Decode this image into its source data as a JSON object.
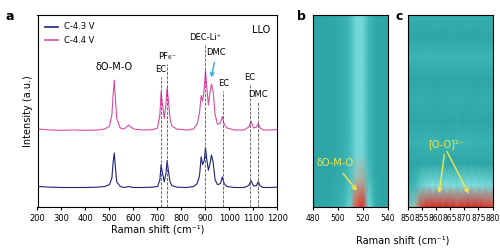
{
  "chart_data": [
    {
      "type": "line",
      "label": "a",
      "note": "LLO",
      "xlabel": "Raman shift (cm⁻¹)",
      "ylabel": "Intensity (a.u.)",
      "x": [
        200,
        250,
        300,
        350,
        400,
        450,
        480,
        500,
        510,
        515,
        520,
        525,
        530,
        545,
        560,
        580,
        600,
        640,
        680,
        700,
        710,
        715,
        720,
        728,
        735,
        740,
        745,
        752,
        760,
        780,
        820,
        850,
        865,
        875,
        882,
        888,
        895,
        900,
        905,
        912,
        918,
        925,
        932,
        940,
        950,
        962,
        970,
        978,
        990,
        1020,
        1060,
        1080,
        1090,
        1100,
        1112,
        1120,
        1128,
        1140,
        1170,
        1200
      ],
      "series": [
        {
          "name": "C-4.3 V",
          "color": "#1f1f7a",
          "values": [
            1.05,
            1.02,
            1.0,
            1.0,
            1.0,
            1.02,
            1.05,
            1.15,
            1.5,
            2.3,
            2.8,
            2.0,
            1.3,
            1.05,
            1.0,
            1.05,
            1.0,
            1.0,
            1.02,
            1.05,
            1.4,
            2.2,
            1.8,
            1.3,
            1.7,
            2.4,
            1.9,
            1.3,
            1.1,
            1.02,
            1.0,
            1.05,
            1.2,
            1.6,
            2.6,
            2.2,
            2.4,
            3.1,
            2.5,
            1.9,
            2.2,
            2.7,
            2.3,
            1.4,
            1.15,
            1.2,
            1.55,
            1.2,
            1.05,
            1.0,
            1.0,
            1.1,
            1.35,
            1.08,
            1.1,
            1.3,
            1.08,
            1.0,
            1.0,
            1.02
          ]
        },
        {
          "name": "C-4.4 V",
          "color": "#d84aa6",
          "values": [
            4.05,
            4.0,
            3.98,
            4.0,
            3.98,
            4.0,
            4.05,
            4.2,
            4.8,
            5.8,
            6.6,
            5.6,
            4.6,
            4.1,
            4.05,
            4.25,
            4.05,
            4.0,
            4.02,
            4.1,
            4.8,
            6.0,
            5.4,
            4.6,
            5.3,
            6.2,
            5.6,
            4.6,
            4.2,
            4.05,
            4.0,
            4.05,
            4.3,
            4.9,
            5.8,
            5.5,
            6.2,
            7.1,
            6.3,
            5.3,
            5.9,
            6.4,
            6.0,
            4.8,
            4.3,
            4.35,
            4.7,
            4.3,
            4.1,
            4.0,
            4.0,
            4.15,
            4.45,
            4.1,
            4.15,
            4.35,
            4.1,
            4.0,
            4.0,
            4.02
          ]
        }
      ],
      "xlim": [
        200,
        1200
      ],
      "xticks": [
        200,
        300,
        400,
        500,
        600,
        700,
        800,
        900,
        1000,
        1100,
        1200
      ],
      "ylim": [
        0,
        10
      ],
      "tick_labels": "x",
      "legend": "upper left",
      "annotations": [
        {
          "text": "δO-M-O",
          "x": 520,
          "y": 7.0
        },
        {
          "text": "EC",
          "x": 715,
          "y": 6.9,
          "line_style": "dashed"
        },
        {
          "text": "PF₆⁻",
          "x": 740,
          "y": 7.6,
          "line_style": "dashed"
        },
        {
          "text": "DEC-Li⁺",
          "x": 900,
          "y": 8.6,
          "line_style": "dashed"
        },
        {
          "text": "DMC",
          "x": 945,
          "y": 7.8,
          "target": [
            922,
            6.6
          ],
          "color": "#29a8e0"
        },
        {
          "text": "EC",
          "x": 975,
          "y": 6.2,
          "line_style": "dashed"
        },
        {
          "text": "EC",
          "x": 1085,
          "y": 6.5,
          "line_style": "dashed"
        },
        {
          "text": "DMC",
          "x": 1120,
          "y": 5.6,
          "line_style": "dashed"
        }
      ]
    },
    {
      "type": "heatmap",
      "label": "b",
      "xlabel": "Raman shift (cm⁻¹)",
      "x": [
        480,
        485,
        490,
        495,
        500,
        505,
        510,
        515,
        520,
        525,
        530,
        535,
        540
      ],
      "cells": [
        [
          0.1,
          0.1,
          0.1,
          0.12,
          0.15,
          0.2,
          0.35,
          0.8,
          0.95,
          0.4,
          0.15,
          0.1,
          0.1
        ],
        [
          0.1,
          0.1,
          0.1,
          0.1,
          0.12,
          0.15,
          0.25,
          0.5,
          0.55,
          0.25,
          0.12,
          0.1,
          0.1
        ],
        [
          0.1,
          0.1,
          0.1,
          0.1,
          0.12,
          0.15,
          0.22,
          0.38,
          0.38,
          0.2,
          0.12,
          0.1,
          0.1
        ],
        [
          0.1,
          0.1,
          0.1,
          0.1,
          0.12,
          0.15,
          0.22,
          0.38,
          0.38,
          0.2,
          0.12,
          0.1,
          0.1
        ],
        [
          0.1,
          0.1,
          0.1,
          0.1,
          0.12,
          0.15,
          0.22,
          0.38,
          0.38,
          0.2,
          0.12,
          0.1,
          0.1
        ],
        [
          0.1,
          0.1,
          0.1,
          0.1,
          0.12,
          0.15,
          0.22,
          0.38,
          0.38,
          0.2,
          0.12,
          0.1,
          0.1
        ],
        [
          0.1,
          0.1,
          0.1,
          0.1,
          0.12,
          0.15,
          0.22,
          0.38,
          0.38,
          0.2,
          0.12,
          0.1,
          0.1
        ],
        [
          0.1,
          0.1,
          0.1,
          0.1,
          0.12,
          0.15,
          0.22,
          0.38,
          0.38,
          0.2,
          0.12,
          0.1,
          0.1
        ]
      ],
      "color_range": [
        0,
        1
      ],
      "xlim": [
        480,
        540
      ],
      "xticks": [
        480,
        500,
        520,
        540
      ],
      "tick_labels": "x",
      "annotations": [
        {
          "text": "δO-M-O",
          "x": [
            517
          ]
        }
      ]
    },
    {
      "type": "heatmap",
      "label": "c",
      "x": [
        850,
        852.5,
        855,
        857.5,
        860,
        862.5,
        865,
        867.5,
        870,
        872.5,
        875,
        877.5,
        880
      ],
      "cells": [
        [
          0.3,
          0.5,
          0.85,
          0.95,
          0.95,
          0.95,
          0.95,
          0.9,
          0.95,
          0.95,
          0.95,
          0.9,
          0.85
        ],
        [
          0.15,
          0.2,
          0.35,
          0.42,
          0.42,
          0.42,
          0.42,
          0.4,
          0.42,
          0.42,
          0.42,
          0.4,
          0.38
        ],
        [
          0.1,
          0.1,
          0.11,
          0.1,
          0.1,
          0.12,
          0.1,
          0.1,
          0.11,
          0.1,
          0.1,
          0.1,
          0.1
        ],
        [
          0.17,
          0.16,
          0.17,
          0.18,
          0.17,
          0.16,
          0.17,
          0.17,
          0.18,
          0.17,
          0.16,
          0.17,
          0.17
        ],
        [
          0.1,
          0.1,
          0.1,
          0.11,
          0.1,
          0.1,
          0.1,
          0.12,
          0.1,
          0.1,
          0.11,
          0.1,
          0.1
        ],
        [
          0.14,
          0.15,
          0.14,
          0.14,
          0.13,
          0.14,
          0.15,
          0.14,
          0.14,
          0.13,
          0.14,
          0.15,
          0.14
        ],
        [
          0.1,
          0.1,
          0.11,
          0.1,
          0.1,
          0.1,
          0.1,
          0.1,
          0.11,
          0.1,
          0.1,
          0.1,
          0.1
        ],
        [
          0.18,
          0.17,
          0.18,
          0.19,
          0.18,
          0.17,
          0.18,
          0.18,
          0.19,
          0.18,
          0.17,
          0.18,
          0.18
        ],
        [
          0.1,
          0.11,
          0.1,
          0.1,
          0.1,
          0.1,
          0.11,
          0.1,
          0.1,
          0.1,
          0.1,
          0.11,
          0.1
        ],
        [
          0.15,
          0.15,
          0.14,
          0.15,
          0.16,
          0.15,
          0.15,
          0.14,
          0.15,
          0.16,
          0.15,
          0.15,
          0.15
        ]
      ],
      "color_range": [
        0,
        1
      ],
      "xlim": [
        850,
        880
      ],
      "xticks": [
        850,
        855,
        860,
        865,
        870,
        875,
        880
      ],
      "tick_labels": "x",
      "annotations": [
        {
          "text": "[O-O]²⁻",
          "x": [
            861,
            872
          ]
        }
      ]
    }
  ]
}
